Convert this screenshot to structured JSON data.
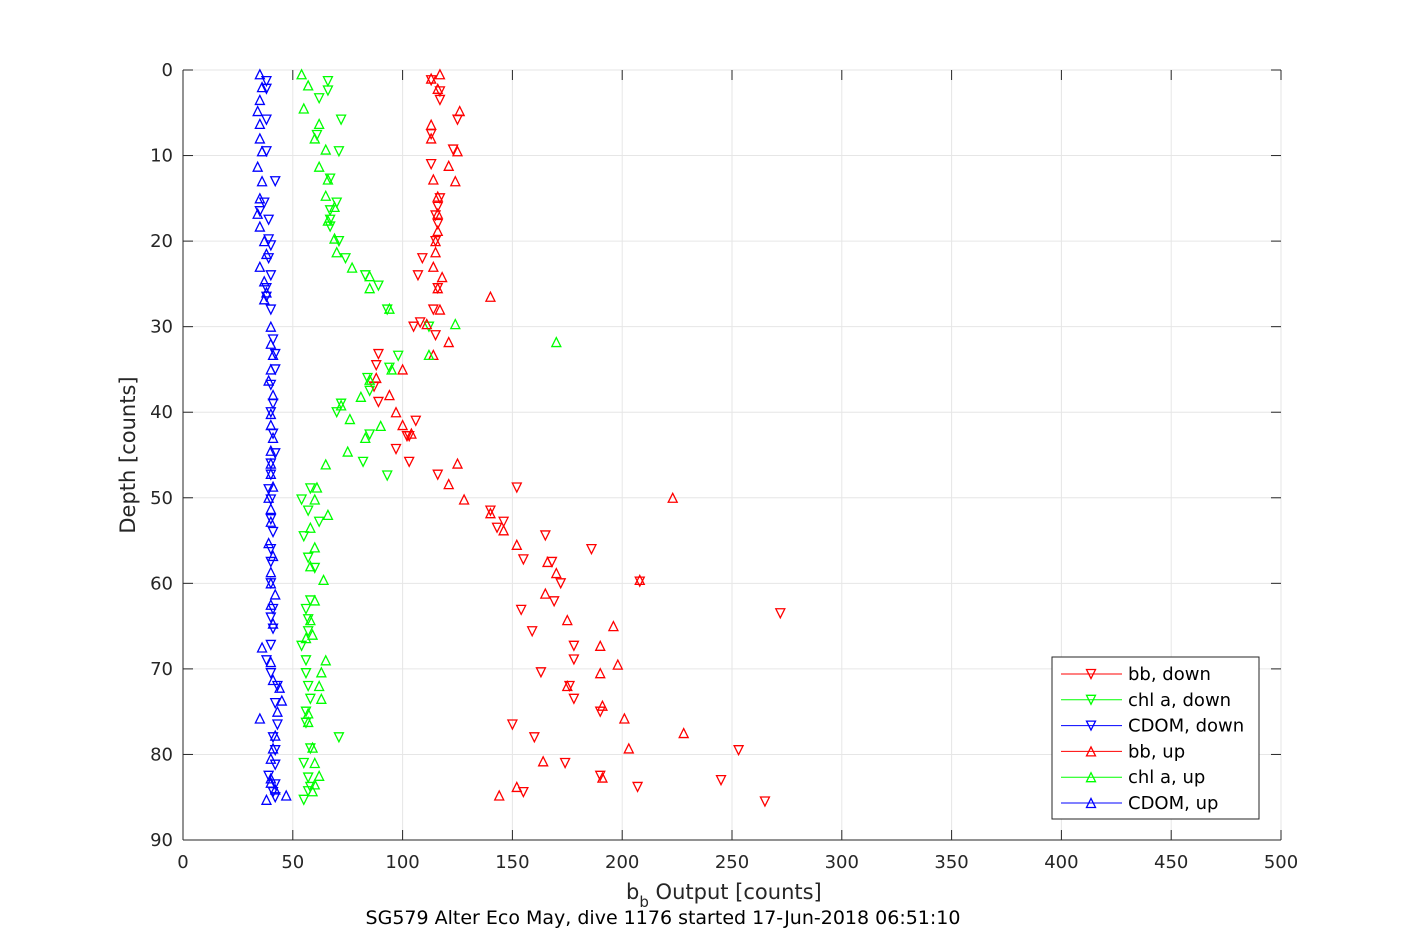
{
  "chart_data": {
    "type": "scatter",
    "caption": "SG579 Alter Eco May, dive 1176 started 17-Jun-2018 06:51:10",
    "xlabel_main": "b",
    "xlabel_sub": "b",
    "xlabel_rest": " Output [counts]",
    "ylabel": "Depth [counts]",
    "xlim": [
      0,
      500
    ],
    "ylim": [
      0,
      90
    ],
    "y_reversed": true,
    "grid": true,
    "legend_position": "bottom-right",
    "x_ticks": [
      "0",
      "50",
      "100",
      "150",
      "200",
      "250",
      "300",
      "350",
      "400",
      "450",
      "500"
    ],
    "y_ticks": [
      "0",
      "10",
      "20",
      "30",
      "40",
      "50",
      "60",
      "70",
      "80",
      "90"
    ],
    "colors": {
      "red": "#ff0000",
      "green": "#00ff00",
      "blue": "#0000ff"
    },
    "series": [
      {
        "name": "bb, down",
        "color": "#ff0000",
        "marker": "triangle-down",
        "points": [
          [
            113,
            1.2
          ],
          [
            117,
            2.5
          ],
          [
            117,
            3.5
          ],
          [
            125,
            5.8
          ],
          [
            113,
            7.5
          ],
          [
            123,
            9.3
          ],
          [
            113,
            11
          ],
          [
            117,
            15
          ],
          [
            116,
            16
          ],
          [
            115,
            17
          ],
          [
            116,
            18
          ],
          [
            115,
            20
          ],
          [
            109,
            22
          ],
          [
            107,
            24
          ],
          [
            116,
            25.5
          ],
          [
            114,
            28
          ],
          [
            105,
            30
          ],
          [
            108,
            29.5
          ],
          [
            115,
            31
          ],
          [
            89,
            33.2
          ],
          [
            88,
            34.5
          ],
          [
            87,
            37
          ],
          [
            89,
            38.8
          ],
          [
            106,
            41
          ],
          [
            102,
            42.8
          ],
          [
            103,
            42.8
          ],
          [
            97,
            44.3
          ],
          [
            103,
            45.8
          ],
          [
            116,
            47.3
          ],
          [
            152,
            48.8
          ],
          [
            140,
            51.5
          ],
          [
            146,
            52.8
          ],
          [
            143,
            53.5
          ],
          [
            165,
            54.4
          ],
          [
            186,
            56
          ],
          [
            155,
            57.2
          ],
          [
            168,
            57.5
          ],
          [
            172,
            60
          ],
          [
            208,
            59.8
          ],
          [
            169,
            62.1
          ],
          [
            154,
            63.1
          ],
          [
            272,
            63.5
          ],
          [
            159,
            65.6
          ],
          [
            178,
            67.3
          ],
          [
            178,
            68.9
          ],
          [
            163,
            70.4
          ],
          [
            176,
            72
          ],
          [
            178,
            73.5
          ],
          [
            190,
            75
          ],
          [
            150,
            76.5
          ],
          [
            160,
            78
          ],
          [
            253,
            79.5
          ],
          [
            174,
            81
          ],
          [
            190,
            82.5
          ],
          [
            245,
            83
          ],
          [
            207,
            83.8
          ],
          [
            155,
            84.4
          ],
          [
            265,
            85.5
          ]
        ]
      },
      {
        "name": "chl a, down",
        "color": "#00ff00",
        "marker": "triangle-down",
        "points": [
          [
            66,
            1.3
          ],
          [
            66,
            2.4
          ],
          [
            62,
            3.3
          ],
          [
            72,
            5.8
          ],
          [
            61,
            7.6
          ],
          [
            71,
            9.5
          ],
          [
            67,
            12.7
          ],
          [
            70,
            15.5
          ],
          [
            67,
            16.4
          ],
          [
            67,
            17.5
          ],
          [
            67,
            18.3
          ],
          [
            71,
            20
          ],
          [
            74,
            22
          ],
          [
            83,
            24
          ],
          [
            89,
            25.2
          ],
          [
            93,
            28
          ],
          [
            112,
            30
          ],
          [
            98,
            33.4
          ],
          [
            94,
            34.8
          ],
          [
            84,
            36
          ],
          [
            85,
            37.5
          ],
          [
            72,
            39
          ],
          [
            70,
            40
          ],
          [
            85,
            42.6
          ],
          [
            82,
            45.8
          ],
          [
            93,
            47.4
          ],
          [
            58,
            48.9
          ],
          [
            54,
            50.2
          ],
          [
            57,
            51.5
          ],
          [
            62,
            52.8
          ],
          [
            55,
            54.5
          ],
          [
            57,
            57
          ],
          [
            60,
            58.2
          ],
          [
            58,
            62
          ],
          [
            56,
            63
          ],
          [
            57,
            64.2
          ],
          [
            57,
            65.6
          ],
          [
            54,
            67.3
          ],
          [
            56,
            69
          ],
          [
            56,
            70.5
          ],
          [
            57,
            72
          ],
          [
            58,
            73.5
          ],
          [
            56,
            75
          ],
          [
            56,
            76.3
          ],
          [
            71,
            78
          ],
          [
            58,
            79.3
          ],
          [
            55,
            81
          ],
          [
            57,
            82.7
          ],
          [
            58,
            83.8
          ],
          [
            57,
            84.3
          ],
          [
            55,
            85.3
          ]
        ]
      },
      {
        "name": "CDOM, down",
        "color": "#0000ff",
        "marker": "triangle-down",
        "points": [
          [
            38,
            1.3
          ],
          [
            38,
            2.2
          ],
          [
            38,
            5.8
          ],
          [
            38,
            9.5
          ],
          [
            42,
            13
          ],
          [
            37,
            15.5
          ],
          [
            35,
            16.5
          ],
          [
            39,
            17.5
          ],
          [
            39,
            19.8
          ],
          [
            40,
            20.5
          ],
          [
            39,
            22
          ],
          [
            40,
            24
          ],
          [
            38,
            25.5
          ],
          [
            38,
            26.5
          ],
          [
            40,
            28
          ],
          [
            41,
            31.5
          ],
          [
            42,
            33.2
          ],
          [
            42,
            35
          ],
          [
            40,
            36.8
          ],
          [
            41,
            39
          ],
          [
            40,
            40
          ],
          [
            41,
            42.5
          ],
          [
            42,
            44.8
          ],
          [
            40,
            46
          ],
          [
            40,
            47.3
          ],
          [
            39,
            49
          ],
          [
            40,
            50.2
          ],
          [
            40,
            52.5
          ],
          [
            41,
            54
          ],
          [
            40,
            56
          ],
          [
            40,
            57.5
          ],
          [
            40,
            60
          ],
          [
            41,
            63
          ],
          [
            40,
            64
          ],
          [
            41,
            65.3
          ],
          [
            40,
            67.2
          ],
          [
            38,
            69
          ],
          [
            40,
            70.5
          ],
          [
            43,
            72
          ],
          [
            42,
            74
          ],
          [
            43,
            76.5
          ],
          [
            41,
            78
          ],
          [
            42,
            79.5
          ],
          [
            42,
            81.2
          ],
          [
            39,
            82.5
          ],
          [
            42,
            83.5
          ],
          [
            41,
            84.4
          ],
          [
            42,
            85
          ]
        ]
      },
      {
        "name": "bb, up",
        "color": "#ff0000",
        "marker": "triangle-up",
        "points": [
          [
            117,
            0.5
          ],
          [
            113,
            1
          ],
          [
            116,
            2.2
          ],
          [
            126,
            4.8
          ],
          [
            113,
            6.4
          ],
          [
            113,
            8
          ],
          [
            125,
            9.5
          ],
          [
            114,
            12.8
          ],
          [
            121,
            11.2
          ],
          [
            124,
            13
          ],
          [
            116,
            14.8
          ],
          [
            116,
            16.8
          ],
          [
            116,
            18.8
          ],
          [
            115,
            20
          ],
          [
            115,
            21.3
          ],
          [
            114,
            23
          ],
          [
            118,
            24.2
          ],
          [
            116,
            25.5
          ],
          [
            140,
            26.5
          ],
          [
            117,
            28
          ],
          [
            111,
            29.7
          ],
          [
            121,
            31.8
          ],
          [
            114,
            33.3
          ],
          [
            100,
            35
          ],
          [
            88,
            36
          ],
          [
            94,
            38
          ],
          [
            97,
            40
          ],
          [
            100,
            41.5
          ],
          [
            104,
            42.5
          ],
          [
            125,
            46
          ],
          [
            121,
            48.4
          ],
          [
            128,
            50.2
          ],
          [
            223,
            50
          ],
          [
            140,
            51.8
          ],
          [
            146,
            53.8
          ],
          [
            152,
            55.5
          ],
          [
            166,
            57.5
          ],
          [
            170,
            58.8
          ],
          [
            165,
            61.2
          ],
          [
            175,
            64.3
          ],
          [
            196,
            65
          ],
          [
            208,
            59.6
          ],
          [
            190,
            67.3
          ],
          [
            198,
            69.5
          ],
          [
            190,
            70.5
          ],
          [
            175,
            72
          ],
          [
            191,
            74.3
          ],
          [
            201,
            75.8
          ],
          [
            228,
            77.5
          ],
          [
            203,
            79.3
          ],
          [
            164,
            80.8
          ],
          [
            191,
            82.7
          ],
          [
            144,
            84.8
          ],
          [
            152,
            83.8
          ]
        ]
      },
      {
        "name": "chl a, up",
        "color": "#00ff00",
        "marker": "triangle-up",
        "points": [
          [
            54,
            0.5
          ],
          [
            57,
            1.8
          ],
          [
            55,
            4.5
          ],
          [
            62,
            6.3
          ],
          [
            60,
            8
          ],
          [
            65,
            9.3
          ],
          [
            62,
            11.3
          ],
          [
            66,
            12.8
          ],
          [
            65,
            14.7
          ],
          [
            69,
            16
          ],
          [
            66,
            17.6
          ],
          [
            69,
            19.7
          ],
          [
            70,
            21.3
          ],
          [
            77,
            23.1
          ],
          [
            85,
            24.1
          ],
          [
            85,
            25.5
          ],
          [
            94,
            27.9
          ],
          [
            124,
            29.7
          ],
          [
            170,
            31.8
          ],
          [
            112,
            33.3
          ],
          [
            95,
            35
          ],
          [
            85,
            36.2
          ],
          [
            81,
            38.2
          ],
          [
            72,
            39.2
          ],
          [
            76,
            40.8
          ],
          [
            90,
            41.6
          ],
          [
            83,
            43
          ],
          [
            75,
            44.6
          ],
          [
            65,
            46.1
          ],
          [
            61,
            48.8
          ],
          [
            60,
            50.2
          ],
          [
            66,
            52
          ],
          [
            58,
            53.5
          ],
          [
            60,
            55.8
          ],
          [
            58,
            58
          ],
          [
            64,
            59.6
          ],
          [
            60,
            62
          ],
          [
            58,
            64.3
          ],
          [
            56,
            66.4
          ],
          [
            59,
            66
          ],
          [
            65,
            69
          ],
          [
            63,
            70.4
          ],
          [
            62,
            72
          ],
          [
            63,
            73.5
          ],
          [
            57,
            75.2
          ],
          [
            57,
            76.2
          ],
          [
            59,
            79.2
          ],
          [
            60,
            81
          ],
          [
            62,
            82.5
          ],
          [
            60,
            83.5
          ],
          [
            59,
            84.3
          ]
        ]
      },
      {
        "name": "CDOM, up",
        "color": "#0000ff",
        "marker": "triangle-up",
        "points": [
          [
            35,
            0.5
          ],
          [
            36,
            2
          ],
          [
            35,
            3.5
          ],
          [
            34,
            4.8
          ],
          [
            35,
            6.3
          ],
          [
            35,
            8
          ],
          [
            36,
            9.5
          ],
          [
            34,
            11.3
          ],
          [
            36,
            13
          ],
          [
            35,
            15
          ],
          [
            34,
            16.8
          ],
          [
            35,
            18.3
          ],
          [
            37,
            20
          ],
          [
            38,
            21.5
          ],
          [
            35,
            23
          ],
          [
            37,
            24.7
          ],
          [
            38,
            26
          ],
          [
            37,
            26.8
          ],
          [
            40,
            30
          ],
          [
            40,
            32
          ],
          [
            41,
            33.3
          ],
          [
            40,
            35
          ],
          [
            39,
            36.3
          ],
          [
            41,
            38
          ],
          [
            40,
            40.2
          ],
          [
            40,
            41.5
          ],
          [
            41,
            43
          ],
          [
            40,
            44.5
          ],
          [
            40,
            46
          ],
          [
            40,
            47.2
          ],
          [
            41,
            48.7
          ],
          [
            39,
            50
          ],
          [
            40,
            51.3
          ],
          [
            40,
            52.8
          ],
          [
            39,
            55.3
          ],
          [
            41,
            56.8
          ],
          [
            40,
            58.7
          ],
          [
            40,
            60
          ],
          [
            42,
            61.3
          ],
          [
            40,
            62.5
          ],
          [
            41,
            64.7
          ],
          [
            36,
            67.5
          ],
          [
            40,
            69.2
          ],
          [
            41,
            71.3
          ],
          [
            44,
            72.2
          ],
          [
            45,
            73.7
          ],
          [
            43,
            75
          ],
          [
            35,
            75.8
          ],
          [
            42,
            77.8
          ],
          [
            41,
            79.3
          ],
          [
            40,
            80.5
          ],
          [
            40,
            82.8
          ],
          [
            40,
            83.3
          ],
          [
            42,
            84.1
          ],
          [
            47,
            84.8
          ],
          [
            38,
            85.3
          ]
        ]
      }
    ]
  }
}
